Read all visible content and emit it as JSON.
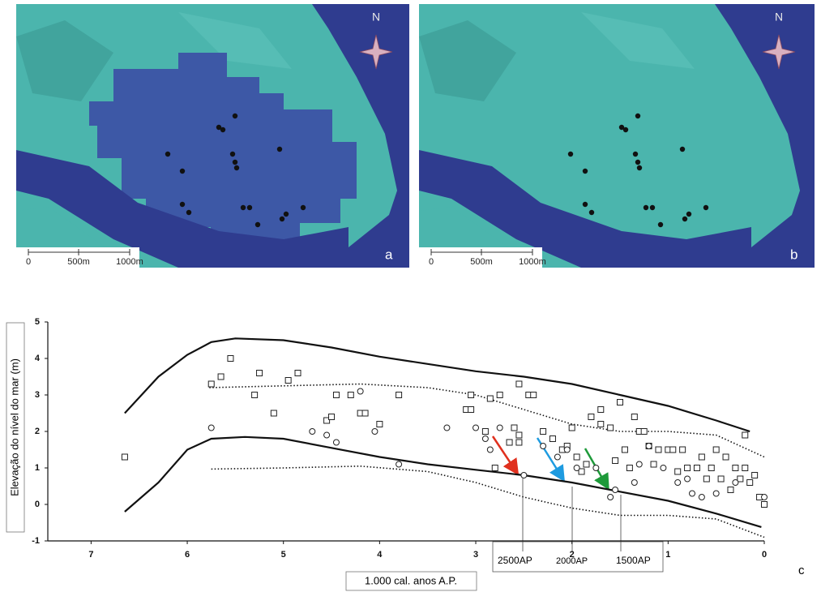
{
  "maps": [
    {
      "label": "a",
      "north": "N",
      "scale": [
        "0",
        "500m",
        "1000m"
      ]
    },
    {
      "label": "b",
      "north": "N",
      "scale": [
        "0",
        "500m",
        "1000m"
      ]
    }
  ],
  "chart_data": {
    "type": "scatter",
    "label": "c",
    "ylabel": "Elevação do nível do mar (m)",
    "xlabel": "1.000 cal. anos A.P.",
    "xlim": [
      7.45,
      0
    ],
    "ylim": [
      -1,
      5
    ],
    "xticks": [
      7,
      6,
      5,
      4,
      3,
      2,
      1,
      0
    ],
    "yticks": [
      -1,
      0,
      1,
      2,
      3,
      4,
      5
    ],
    "annotations": [
      "2500AP",
      "2000AP",
      "1500AP"
    ],
    "series": [
      {
        "marker": "none",
        "dash": "solid",
        "color": "#111111",
        "x": [
          6.65,
          6.3,
          6.0,
          5.75,
          5.5,
          5.0,
          4.5,
          4.0,
          3.5,
          3.0,
          2.5,
          2.0,
          1.5,
          1.0,
          0.5,
          0.15
        ],
        "values": [
          2.5,
          3.5,
          4.1,
          4.45,
          4.55,
          4.5,
          4.3,
          4.05,
          3.85,
          3.65,
          3.5,
          3.3,
          3.0,
          2.7,
          2.3,
          2.0
        ]
      },
      {
        "marker": "none",
        "dash": "solid",
        "color": "#111111",
        "x": [
          6.65,
          6.3,
          6.0,
          5.75,
          5.4,
          5.0,
          4.5,
          4.0,
          3.5,
          3.0,
          2.5,
          2.0,
          1.5,
          1.0,
          0.5,
          0.03
        ],
        "values": [
          -0.2,
          0.6,
          1.5,
          1.8,
          1.85,
          1.8,
          1.55,
          1.3,
          1.1,
          0.95,
          0.8,
          0.6,
          0.35,
          0.1,
          -0.25,
          -0.62
        ]
      },
      {
        "marker": "none",
        "dash": "dotted",
        "color": "#111111",
        "x": [
          5.77,
          4.2,
          3.5,
          3.0,
          2.5,
          2.0,
          1.5,
          1.0,
          0.5,
          0.0
        ],
        "values": [
          3.2,
          3.3,
          3.2,
          3.0,
          2.6,
          2.2,
          2.0,
          2.0,
          1.9,
          1.3
        ]
      },
      {
        "marker": "none",
        "dash": "dotted",
        "color": "#111111",
        "x": [
          5.75,
          5.0,
          4.2,
          3.5,
          3.0,
          2.5,
          2.0,
          1.5,
          1.0,
          0.5,
          0.0
        ],
        "values": [
          0.97,
          1.0,
          1.05,
          0.9,
          0.6,
          0.2,
          -0.1,
          -0.3,
          -0.3,
          -0.4,
          -0.9
        ]
      },
      {
        "marker": "square",
        "dash": "none",
        "color": "#222222",
        "x": [
          6.65,
          5.75,
          5.65,
          5.55,
          5.3,
          5.25,
          5.1,
          4.95,
          4.85,
          4.55,
          4.5,
          4.45,
          4.3,
          4.2,
          4.15,
          4.0,
          3.8,
          3.1,
          3.05,
          3.05,
          2.85,
          2.75,
          2.55,
          2.45,
          2.4,
          2.55,
          2.9,
          2.6,
          2.65,
          2.55,
          2.8,
          2.3,
          2.1,
          2.05,
          1.95,
          1.85,
          1.7,
          1.8,
          1.7,
          1.6,
          1.5,
          1.35,
          1.3,
          1.25,
          1.2,
          1.1,
          1.0,
          0.95,
          0.85,
          0.8,
          0.7,
          0.65,
          0.55,
          0.5,
          0.4,
          0.3,
          0.25,
          0.2,
          0.15,
          0.1,
          0.05,
          0.0,
          0.2,
          0.45,
          0.6,
          0.35,
          1.15,
          0.9,
          1.45,
          1.4,
          1.55,
          2.0,
          2.2,
          1.9
        ],
        "values": [
          1.3,
          3.3,
          3.5,
          4.0,
          3.0,
          3.6,
          2.5,
          3.4,
          3.6,
          2.3,
          2.4,
          3.0,
          3.0,
          2.5,
          2.5,
          2.2,
          3.0,
          2.6,
          2.6,
          3.0,
          2.9,
          3.0,
          3.3,
          3.0,
          3.0,
          1.9,
          2.0,
          2.1,
          1.7,
          1.7,
          1.0,
          2.0,
          1.5,
          1.6,
          1.3,
          1.1,
          2.6,
          2.4,
          2.2,
          2.1,
          2.8,
          2.4,
          2.0,
          2.0,
          1.6,
          1.5,
          1.5,
          1.5,
          1.5,
          1.0,
          1.0,
          1.3,
          1.0,
          1.5,
          1.3,
          1.0,
          0.7,
          1.0,
          0.6,
          0.8,
          0.2,
          0.0,
          1.9,
          0.7,
          0.7,
          0.4,
          1.1,
          0.9,
          1.5,
          1.0,
          1.2,
          2.1,
          1.8,
          0.9
        ]
      },
      {
        "marker": "circle",
        "dash": "none",
        "color": "#222222",
        "x": [
          5.75,
          4.7,
          4.55,
          4.45,
          4.2,
          4.05,
          3.8,
          3.3,
          3.0,
          2.9,
          2.75,
          2.85,
          2.5,
          2.3,
          2.15,
          2.05,
          1.95,
          1.75,
          1.6,
          1.55,
          1.35,
          1.2,
          0.9,
          0.75,
          0.65,
          0.5,
          0.3,
          0.0,
          1.3,
          0.8,
          1.05
        ],
        "values": [
          2.1,
          2.0,
          1.9,
          1.7,
          3.1,
          2.0,
          1.1,
          2.1,
          2.1,
          1.8,
          2.1,
          1.5,
          0.8,
          1.6,
          1.3,
          1.5,
          1.0,
          1.0,
          0.2,
          0.4,
          0.6,
          1.6,
          0.6,
          0.3,
          0.2,
          0.3,
          0.6,
          0.2,
          1.1,
          0.7,
          1.0
        ]
      }
    ]
  }
}
